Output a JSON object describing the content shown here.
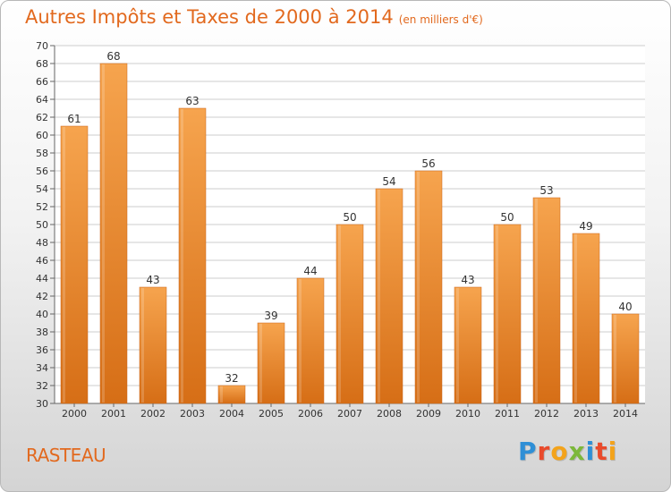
{
  "title": "Autres Impôts et Taxes de 2000 à 2014",
  "unit_note": "(en milliers d'€)",
  "commune": "RASTEAU",
  "logo_text": "Proxiti",
  "colors": {
    "title": "#e2691e",
    "bar_top": "#f6a44e",
    "bar_bottom": "#d66e16",
    "grid": "#cccccc",
    "axis_text": "#333333"
  },
  "chart_data": {
    "type": "bar",
    "categories": [
      "2000",
      "2001",
      "2002",
      "2003",
      "2004",
      "2005",
      "2006",
      "2007",
      "2008",
      "2009",
      "2010",
      "2011",
      "2012",
      "2013",
      "2014"
    ],
    "values": [
      61,
      68,
      43,
      63,
      32,
      39,
      44,
      50,
      54,
      56,
      43,
      50,
      53,
      49,
      40
    ],
    "ylim": [
      30,
      70
    ],
    "ytick_step": 2,
    "grid": true,
    "data_labels": true
  }
}
